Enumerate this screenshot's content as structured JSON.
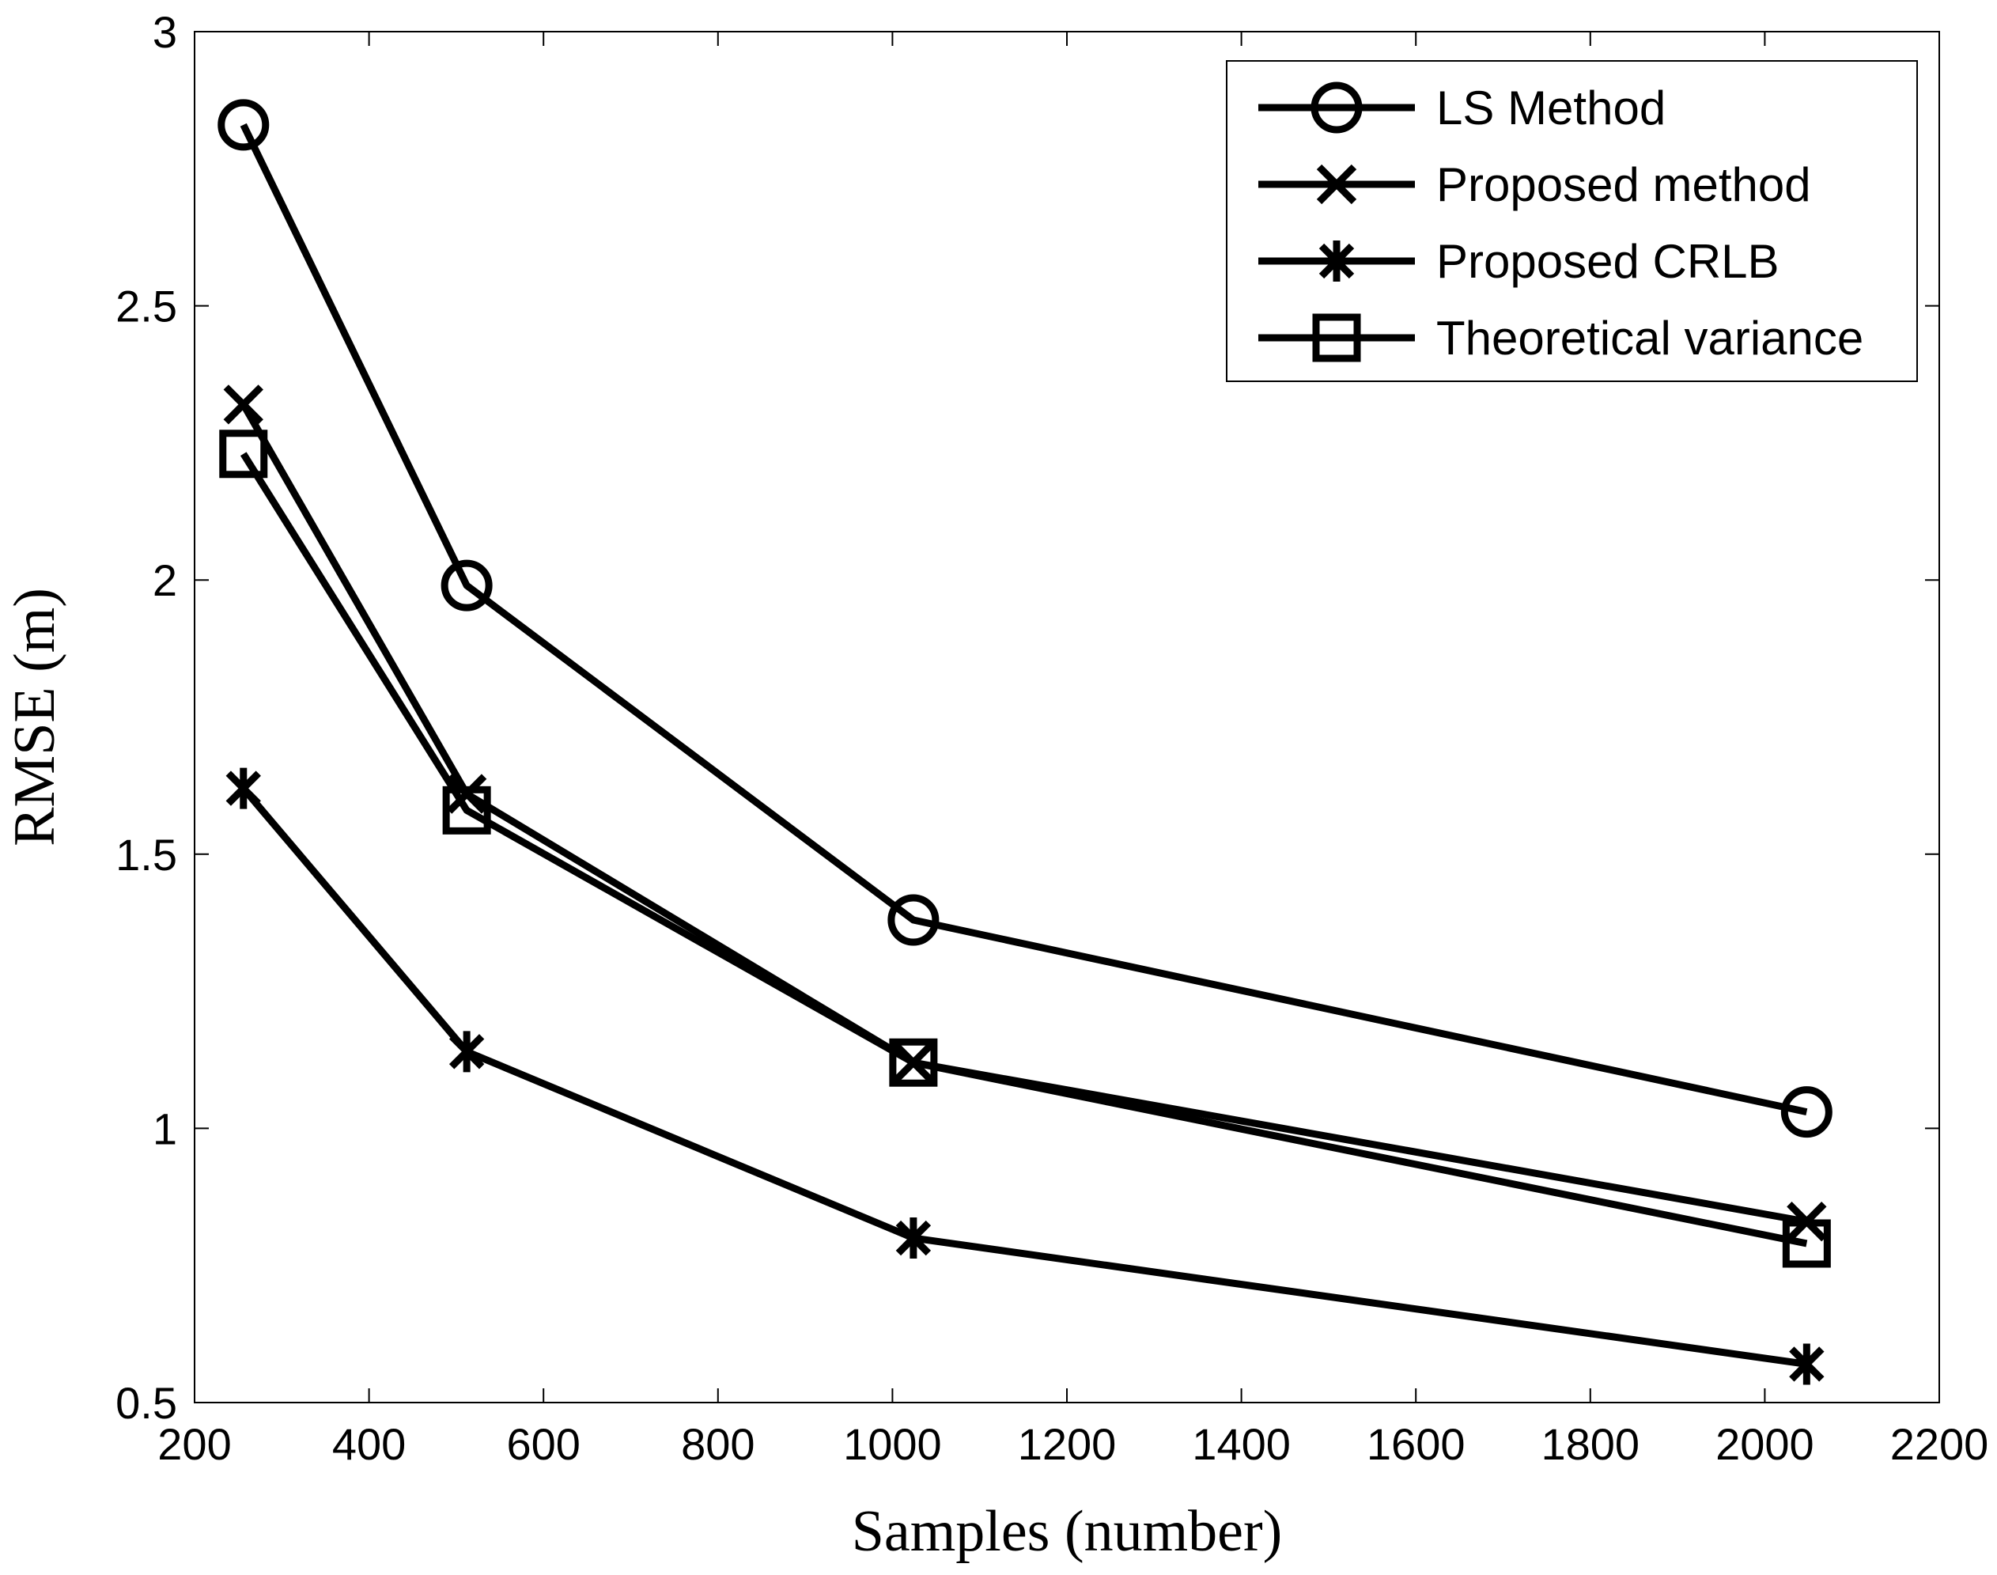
{
  "chart_data": {
    "type": "line",
    "title": "",
    "xlabel": "Samples (number)",
    "ylabel": "RMSE (m)",
    "xlim": [
      200,
      2200
    ],
    "ylim": [
      0.5,
      3
    ],
    "xticks": [
      200,
      400,
      600,
      800,
      1000,
      1200,
      1400,
      1600,
      1800,
      2000,
      2200
    ],
    "yticks": [
      0.5,
      1,
      1.5,
      2,
      2.5,
      3
    ],
    "xtick_labels": [
      "200",
      "400",
      "600",
      "800",
      "1000",
      "1200",
      "1400",
      "1600",
      "1800",
      "2000",
      "2200"
    ],
    "ytick_labels": [
      "0.5",
      "1",
      "1.5",
      "2",
      "2.5",
      "3"
    ],
    "grid": false,
    "legend_position": "top-right",
    "x": [
      256,
      512,
      1024,
      2048
    ],
    "series": [
      {
        "name": "LS Method",
        "marker": "circle",
        "values": [
          2.83,
          1.99,
          1.38,
          1.03
        ]
      },
      {
        "name": "Proposed method",
        "marker": "x",
        "values": [
          2.32,
          1.61,
          1.12,
          0.83
        ]
      },
      {
        "name": "Proposed CRLB",
        "marker": "asterisk",
        "values": [
          1.62,
          1.14,
          0.8,
          0.57
        ]
      },
      {
        "name": "Theoretical variance",
        "marker": "square",
        "values": [
          2.23,
          1.58,
          1.12,
          0.79
        ]
      }
    ],
    "colors": {
      "line": "#000000",
      "background": "#ffffff"
    }
  }
}
